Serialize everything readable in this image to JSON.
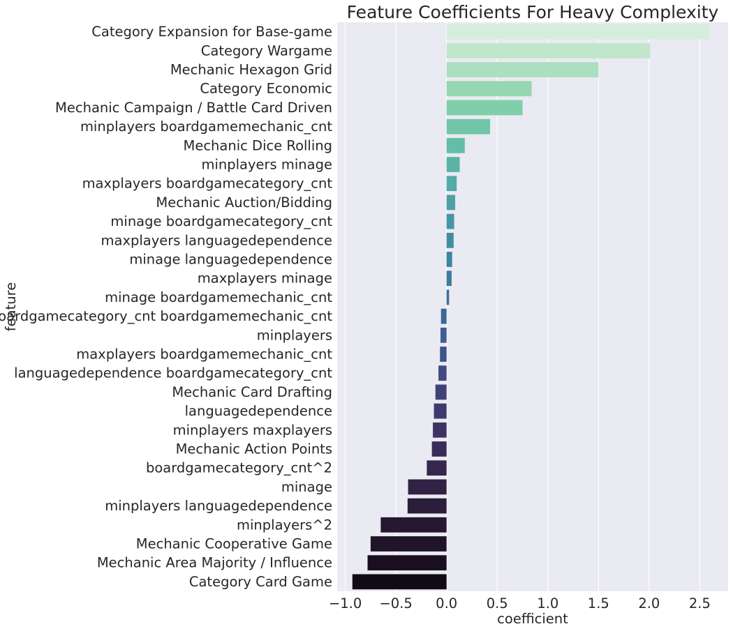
{
  "chart_data": {
    "type": "bar",
    "orientation": "horizontal",
    "title": "Feature Coefficients For Heavy Complexity",
    "xlabel": "coefficient",
    "ylabel": "feature",
    "xlim": [
      -1.08,
      2.78
    ],
    "xticks": [
      -1.0,
      -0.5,
      0.0,
      0.5,
      1.0,
      1.5,
      2.0,
      2.5
    ],
    "xtick_labels": [
      "−1.0",
      "−0.5",
      "0.0",
      "0.5",
      "1.0",
      "1.5",
      "2.0",
      "2.5"
    ],
    "grid": true,
    "background_color": "#eaeaf2",
    "categories": [
      "Category Expansion for Base-game",
      "Category Wargame",
      "Mechanic Hexagon Grid",
      "Category Economic",
      "Mechanic Campaign / Battle Card Driven",
      "minplayers boardgamemechanic_cnt",
      "Mechanic Dice Rolling",
      "minplayers minage",
      "maxplayers boardgamecategory_cnt",
      "Mechanic Auction/Bidding",
      "minage boardgamecategory_cnt",
      "maxplayers languagedependence",
      "minage languagedependence",
      "maxplayers minage",
      "minage boardgamemechanic_cnt",
      "boardgamecategory_cnt boardgamemechanic_cnt",
      "minplayers",
      "maxplayers boardgamemechanic_cnt",
      "languagedependence boardgamecategory_cnt",
      "Mechanic Card Drafting",
      "languagedependence",
      "minplayers maxplayers",
      "Mechanic Action Points",
      "boardgamecategory_cnt^2",
      "minage",
      "minplayers languagedependence",
      "minplayers^2",
      "Mechanic Cooperative Game",
      "Mechanic Area Majority / Influence",
      "Category Card Game"
    ],
    "values": [
      2.59,
      2.01,
      1.5,
      0.84,
      0.75,
      0.43,
      0.18,
      0.13,
      0.1,
      0.085,
      0.075,
      0.07,
      0.055,
      0.05,
      0.025,
      -0.055,
      -0.06,
      -0.065,
      -0.08,
      -0.11,
      -0.125,
      -0.135,
      -0.145,
      -0.195,
      -0.38,
      -0.385,
      -0.65,
      -0.75,
      -0.78,
      -0.93
    ],
    "colors": [
      "#d3eedd",
      "#c0e6cc",
      "#aadfc0",
      "#95d6b3",
      "#81cfaa",
      "#70c6a6",
      "#64bda6",
      "#5bb3a6",
      "#54aaa5",
      "#4da1a4",
      "#4797a3",
      "#428ea1",
      "#3f849f",
      "#3e7b9d",
      "#3d719a",
      "#3e6796",
      "#3f5e91",
      "#40548b",
      "#414a84",
      "#41417a",
      "#40396f",
      "#3e3263",
      "#3a2c58",
      "#36274e",
      "#312244",
      "#2c1d3b",
      "#261831",
      "#201428",
      "#1a0f1f",
      "#130b14"
    ]
  }
}
